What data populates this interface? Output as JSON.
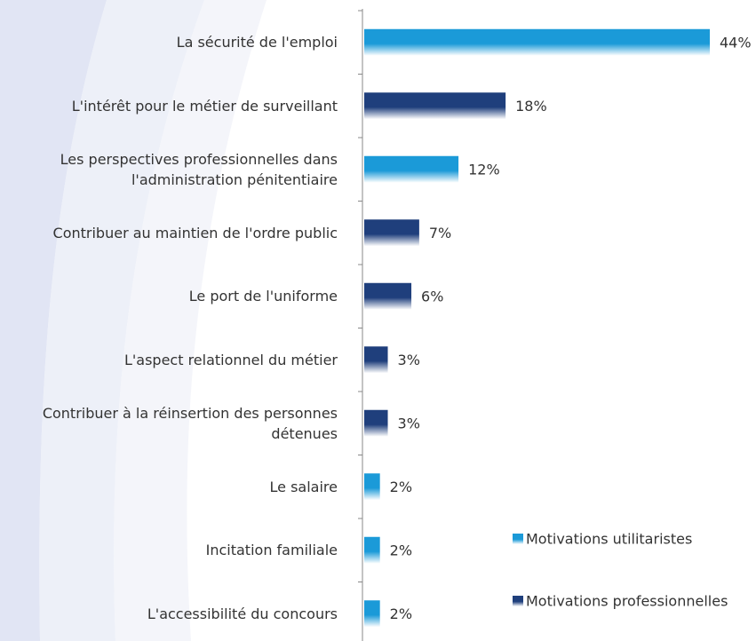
{
  "chart_data": {
    "type": "bar",
    "orientation": "horizontal",
    "categories": [
      "La sécurité de l'emploi",
      "L'intérêt pour le métier de surveillant",
      "Les perspectives professionnelles dans\nl'administration pénitentiaire",
      "Contribuer au maintien de l'ordre public",
      "Le port de l'uniforme",
      "L'aspect relationnel du métier",
      "Contribuer à la réinsertion des personnes\ndétenues",
      "Le salaire",
      "Incitation familiale",
      "L'accessibilité du concours"
    ],
    "series": [
      {
        "name": "Motivations utilitaristes",
        "color": "#1b9ad8",
        "values": [
          44,
          null,
          12,
          null,
          null,
          null,
          null,
          2,
          2,
          2
        ],
        "value_labels": [
          "44%",
          null,
          "12%",
          null,
          null,
          null,
          null,
          "2%",
          "2%",
          "2%"
        ]
      },
      {
        "name": "Motivations professionnelles",
        "color": "#1f3f7c",
        "values": [
          null,
          18,
          null,
          7,
          6,
          3,
          3,
          null,
          null,
          null
        ],
        "value_labels": [
          null,
          "18%",
          null,
          "7%",
          "6%",
          "3%",
          "3%",
          null,
          null,
          null
        ]
      }
    ],
    "legend": "bottom-right"
  }
}
